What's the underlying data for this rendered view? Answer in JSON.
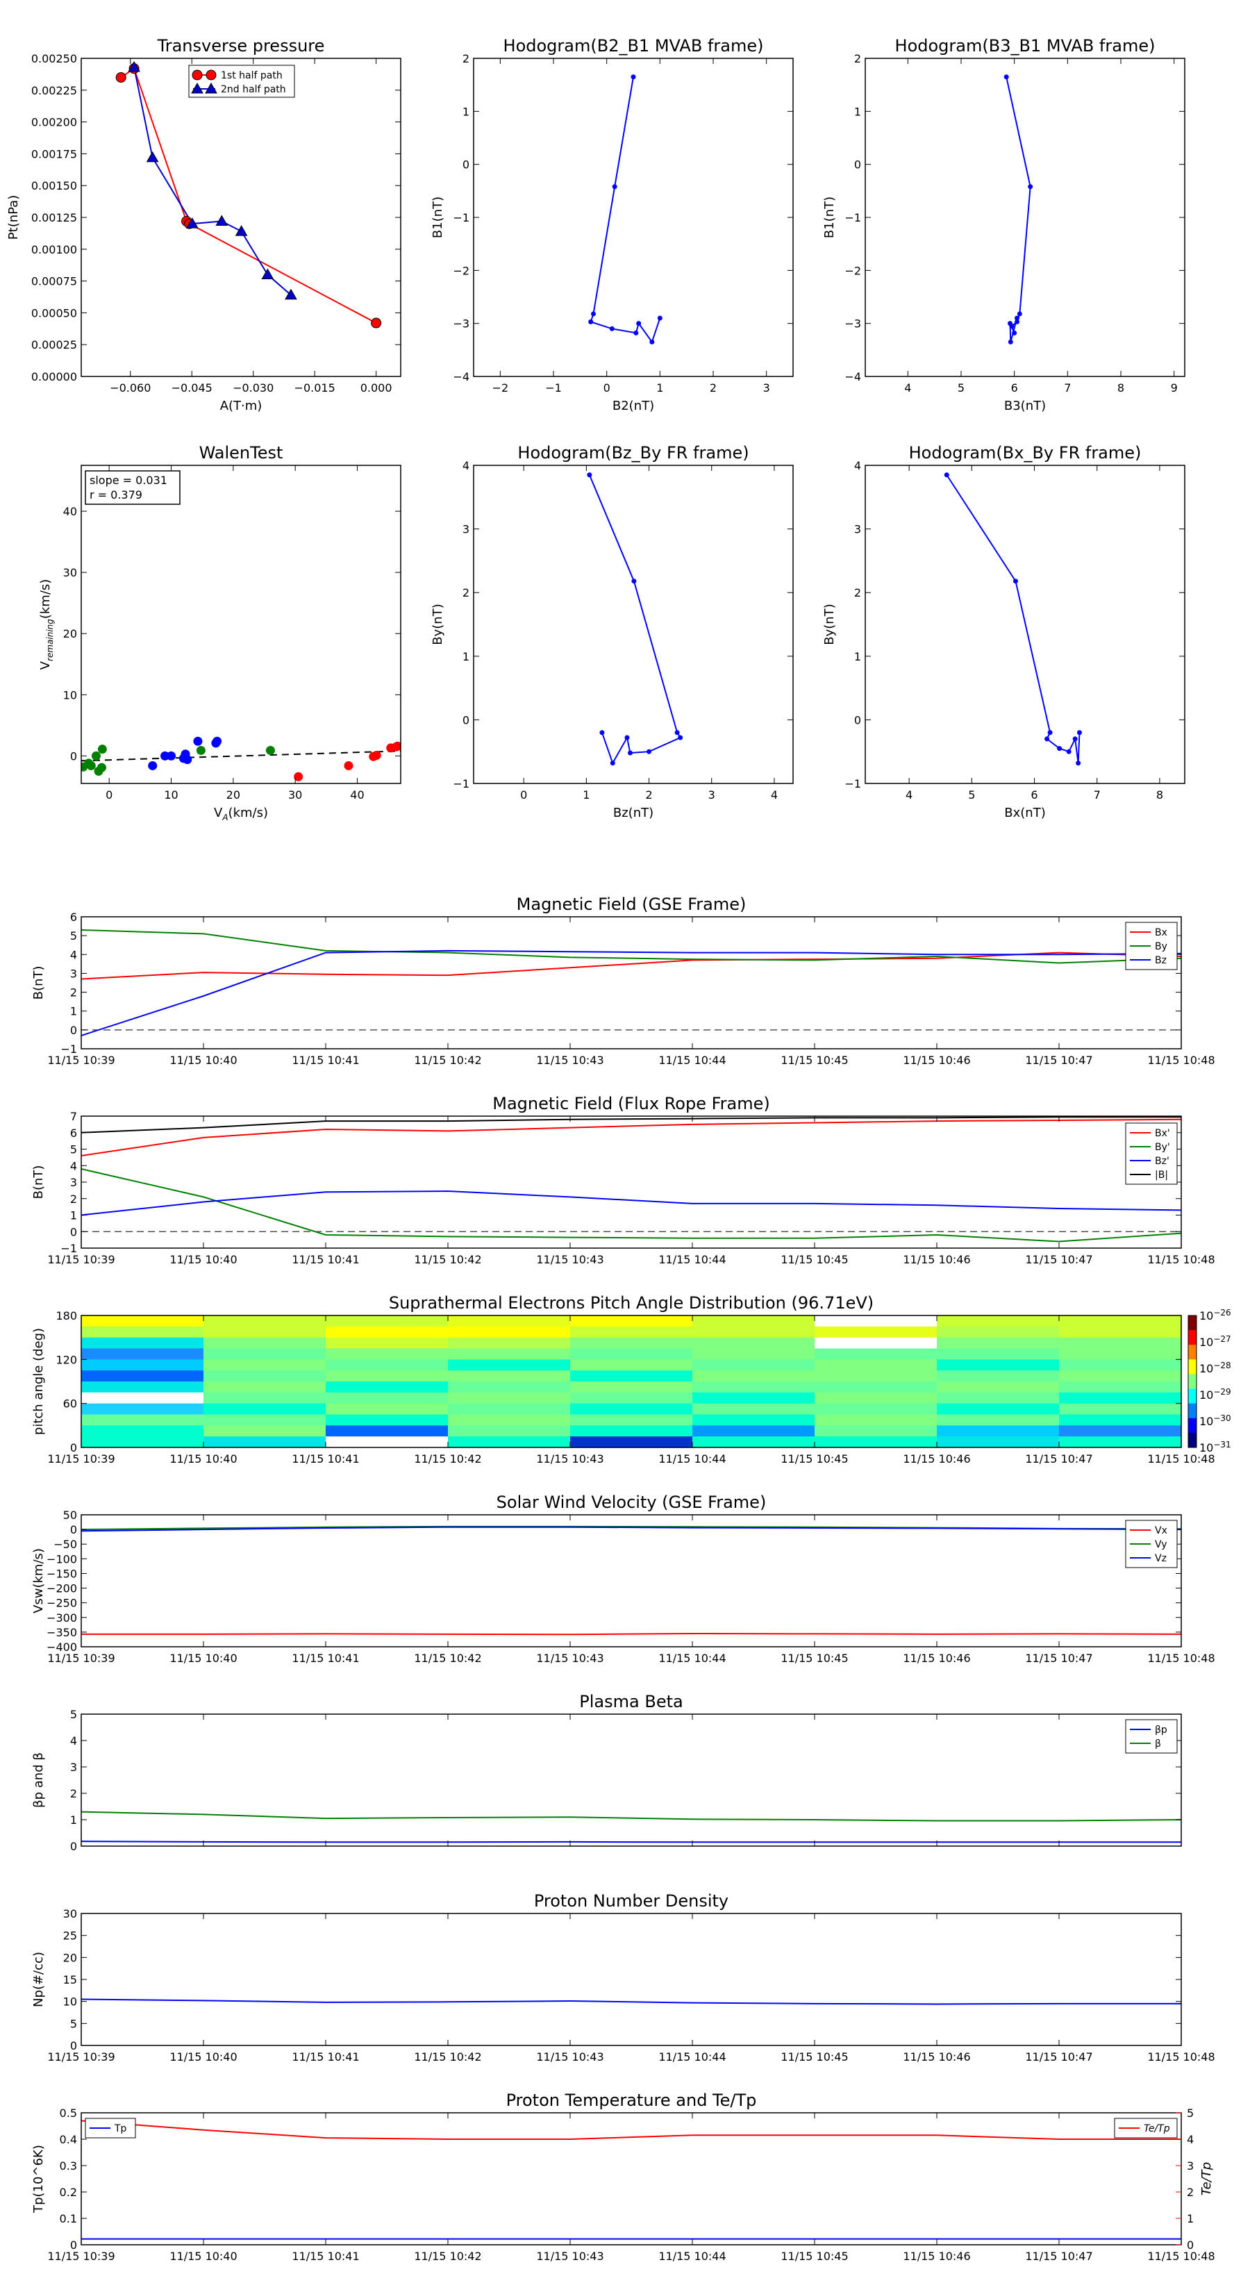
{
  "chart_data": [
    {
      "id": "transverse-pressure",
      "type": "line",
      "title": "Transverse pressure",
      "xlabel": "A(T·m)",
      "ylabel": "Pt(nPa)",
      "xlim": [
        -0.072,
        0.006
      ],
      "ylim": [
        0,
        0.0025
      ],
      "xticks": [
        -0.06,
        -0.045,
        -0.03,
        -0.015,
        0.0
      ],
      "xtick_labels": [
        "−0.060",
        "−0.045",
        "−0.030",
        "−0.015",
        "0.000"
      ],
      "yticks": [
        0,
        0.00025,
        0.0005,
        0.00075,
        0.001,
        0.00125,
        0.0015,
        0.00175,
        0.002,
        0.00225,
        0.0025
      ],
      "ytick_labels": [
        "0.00000",
        "0.00025",
        "0.00050",
        "0.00075",
        "0.00100",
        "0.00125",
        "0.00150",
        "0.00175",
        "0.00200",
        "0.00225",
        "0.00250"
      ],
      "legend": "top-center",
      "series": [
        {
          "name": "1st half path",
          "color": "#ff0000",
          "marker": "circle",
          "x": [
            -0.0623,
            -0.0591,
            -0.0463,
            -0.0456,
            0.0
          ],
          "y": [
            0.00235,
            0.00242,
            0.00122,
            0.0012,
            0.00042
          ]
        },
        {
          "name": "2nd half path",
          "color": "#0000cc",
          "marker": "triangle",
          "x": [
            -0.0591,
            -0.0546,
            -0.0449,
            -0.0377,
            -0.0329,
            -0.0265,
            -0.0208
          ],
          "y": [
            0.00243,
            0.00172,
            0.0012,
            0.00122,
            0.00114,
            0.0008,
            0.00064
          ]
        }
      ]
    },
    {
      "id": "hodogram-b2-b1",
      "type": "line",
      "title": "Hodogram(B2_B1 MVAB frame)",
      "xlabel": "B2(nT)",
      "ylabel": "B1(nT)",
      "xlim": [
        -2.5,
        3.5
      ],
      "ylim": [
        -4,
        2
      ],
      "xticks": [
        -2,
        -1,
        0,
        1,
        2,
        3
      ],
      "yticks": [
        -4,
        -3,
        -2,
        -1,
        0,
        1,
        2
      ],
      "series": [
        {
          "color": "#0000ff",
          "x": [
            0.5,
            0.15,
            -0.25,
            -0.3,
            0.1,
            0.55,
            0.6,
            0.85,
            1.0
          ],
          "y": [
            1.65,
            -0.42,
            -2.82,
            -2.97,
            -3.1,
            -3.18,
            -3.0,
            -3.35,
            -2.9
          ]
        }
      ]
    },
    {
      "id": "hodogram-b3-b1",
      "type": "line",
      "title": "Hodogram(B3_B1 MVAB frame)",
      "xlabel": "B3(nT)",
      "ylabel": "B1(nT)",
      "xlim": [
        3.2,
        9.2
      ],
      "ylim": [
        -4,
        2
      ],
      "xticks": [
        4,
        5,
        6,
        7,
        8,
        9
      ],
      "yticks": [
        -4,
        -3,
        -2,
        -1,
        0,
        1,
        2
      ],
      "series": [
        {
          "color": "#0000ff",
          "x": [
            5.85,
            6.3,
            6.1,
            6.05,
            5.95,
            6.0,
            5.92,
            5.93,
            6.05
          ],
          "y": [
            1.65,
            -0.42,
            -2.82,
            -2.97,
            -3.05,
            -3.18,
            -3.0,
            -3.35,
            -2.9
          ]
        }
      ]
    },
    {
      "id": "walen-test",
      "type": "scatter",
      "title": "WalenTest",
      "xlabel": "V_A(km/s)",
      "ylabel": "V_remaining(km/s)",
      "xlim": [
        -4.5,
        47
      ],
      "ylim": [
        -4.5,
        47.5
      ],
      "xticks": [
        0,
        10,
        20,
        30,
        40
      ],
      "yticks": [
        0,
        10,
        20,
        30,
        40
      ],
      "annotation": [
        "slope = 0.031",
        "r = 0.379"
      ],
      "fit_line": {
        "x": [
          -4.5,
          47
        ],
        "y": [
          -0.8,
          0.8
        ]
      },
      "series": [
        {
          "color": "#008000",
          "x": [
            -4.2,
            -3.3,
            -2.9,
            -2.1,
            -1.7,
            -1.2,
            -1.1,
            14.8,
            26.0
          ],
          "y": [
            -1.8,
            -1.2,
            -1.6,
            0.0,
            -2.5,
            -1.9,
            1.1,
            0.9,
            0.9
          ]
        },
        {
          "color": "#0000ff",
          "x": [
            7.0,
            9.0,
            10.0,
            12.0,
            12.3,
            12.6,
            14.3,
            17.2,
            17.4
          ],
          "y": [
            -1.6,
            0.0,
            0.0,
            -0.4,
            0.3,
            -0.6,
            2.4,
            2.1,
            2.4
          ]
        },
        {
          "color": "#ff0000",
          "x": [
            30.5,
            38.6,
            42.6,
            43.1,
            45.4,
            46.3,
            46.5
          ],
          "y": [
            -3.4,
            -1.6,
            -0.1,
            0.1,
            1.3,
            1.5,
            1.6
          ]
        }
      ]
    },
    {
      "id": "hodogram-bz-by",
      "type": "line",
      "title": "Hodogram(Bz_By FR frame)",
      "xlabel": "Bz(nT)",
      "ylabel": "By(nT)",
      "xlim": [
        -0.8,
        4.3
      ],
      "ylim": [
        -1,
        4
      ],
      "xticks": [
        0,
        1,
        2,
        3,
        4
      ],
      "yticks": [
        -1,
        0,
        1,
        2,
        3,
        4
      ],
      "series": [
        {
          "color": "#0000ff",
          "x": [
            1.05,
            1.76,
            2.45,
            2.5,
            2.0,
            1.7,
            1.65,
            1.42,
            1.25
          ],
          "y": [
            3.85,
            2.18,
            -0.2,
            -0.28,
            -0.5,
            -0.52,
            -0.28,
            -0.68,
            -0.2
          ]
        }
      ]
    },
    {
      "id": "hodogram-bx-by",
      "type": "line",
      "title": "Hodogram(Bx_By FR frame)",
      "xlabel": "Bx(nT)",
      "ylabel": "By(nT)",
      "xlim": [
        3.3,
        8.4
      ],
      "ylim": [
        -1,
        4
      ],
      "xticks": [
        4,
        5,
        6,
        7,
        8
      ],
      "yticks": [
        -1,
        0,
        1,
        2,
        3,
        4
      ],
      "series": [
        {
          "color": "#0000ff",
          "x": [
            4.6,
            5.7,
            6.25,
            6.2,
            6.4,
            6.55,
            6.65,
            6.7,
            6.72
          ],
          "y": [
            3.85,
            2.18,
            -0.2,
            -0.3,
            -0.45,
            -0.5,
            -0.3,
            -0.68,
            -0.2
          ]
        }
      ]
    },
    {
      "id": "magnetic-field-gse",
      "type": "line",
      "title": "Magnetic Field (GSE Frame)",
      "ylabel": "B(nT)",
      "xlim": [
        0,
        9
      ],
      "ylim": [
        -1,
        6
      ],
      "yticks": [
        -1,
        0,
        1,
        2,
        3,
        4,
        5,
        6
      ],
      "xtick_labels": [
        "11/15 10:39",
        "11/15 10:40",
        "11/15 10:41",
        "11/15 10:42",
        "11/15 10:43",
        "11/15 10:44",
        "11/15 10:45",
        "11/15 10:46",
        "11/15 10:47",
        "11/15 10:48"
      ],
      "zero_line": true,
      "legend": "top-right",
      "series": [
        {
          "name": "Bx",
          "color": "#ff0000",
          "values": [
            2.7,
            3.05,
            2.95,
            2.9,
            3.3,
            3.7,
            3.75,
            3.8,
            4.1,
            3.9
          ]
        },
        {
          "name": "By",
          "color": "#008000",
          "values": [
            5.3,
            5.1,
            4.2,
            4.1,
            3.85,
            3.75,
            3.7,
            3.9,
            3.55,
            3.8
          ]
        },
        {
          "name": "Bz",
          "color": "#0000ff",
          "values": [
            -0.3,
            1.8,
            4.1,
            4.2,
            4.15,
            4.1,
            4.1,
            4.0,
            4.0,
            4.05
          ]
        }
      ]
    },
    {
      "id": "magnetic-field-fr",
      "type": "line",
      "title": "Magnetic Field (Flux Rope Frame)",
      "ylabel": "B(nT)",
      "xlim": [
        0,
        9
      ],
      "ylim": [
        -1,
        7
      ],
      "yticks": [
        -1,
        0,
        1,
        2,
        3,
        4,
        5,
        6,
        7
      ],
      "xtick_labels": [
        "11/15 10:39",
        "11/15 10:40",
        "11/15 10:41",
        "11/15 10:42",
        "11/15 10:43",
        "11/15 10:44",
        "11/15 10:45",
        "11/15 10:46",
        "11/15 10:47",
        "11/15 10:48"
      ],
      "zero_line": true,
      "legend": "right",
      "series": [
        {
          "name": "Bx'",
          "color": "#ff0000",
          "values": [
            4.6,
            5.7,
            6.2,
            6.1,
            6.3,
            6.5,
            6.6,
            6.7,
            6.75,
            6.8
          ]
        },
        {
          "name": "By'",
          "color": "#008000",
          "values": [
            3.8,
            2.1,
            -0.2,
            -0.3,
            -0.35,
            -0.4,
            -0.4,
            -0.2,
            -0.6,
            -0.1
          ]
        },
        {
          "name": "Bz'",
          "color": "#0000ff",
          "values": [
            1.0,
            1.8,
            2.4,
            2.45,
            2.1,
            1.7,
            1.7,
            1.6,
            1.4,
            1.3
          ]
        },
        {
          "name": "|B|",
          "color": "#000000",
          "values": [
            6.0,
            6.3,
            6.7,
            6.7,
            6.8,
            6.85,
            6.9,
            6.9,
            6.95,
            6.95
          ]
        }
      ]
    },
    {
      "id": "pitch-angle-distribution",
      "type": "heatmap",
      "title": "Suprathermal Electrons Pitch Angle Distribution (96.71eV)",
      "ylabel": "pitch angle (deg)",
      "xlim": [
        0,
        9
      ],
      "ylim": [
        0,
        180
      ],
      "yticks": [
        0,
        60,
        120,
        180
      ],
      "xtick_labels": [
        "11/15 10:39",
        "11/15 10:40",
        "11/15 10:41",
        "11/15 10:42",
        "11/15 10:43",
        "11/15 10:44",
        "11/15 10:45",
        "11/15 10:46",
        "11/15 10:47",
        "11/15 10:48"
      ],
      "colorbar_labels": [
        "10^-26",
        "10^-27",
        "10^-28",
        "10^-29",
        "10^-30",
        "10^-31"
      ],
      "grid": [
        [
          "#ffff00",
          "#ccff33",
          "#ccff33",
          "#e6ff1a",
          "#ffff00",
          "#ccff33",
          "#ffffff",
          "#ccff33",
          "#ccff33"
        ],
        [
          "#b3ff4d",
          "#ccff33",
          "#ffff00",
          "#ffff00",
          "#ccff33",
          "#ccff33",
          "#e6ff1a",
          "#b3ff4d",
          "#ccff33"
        ],
        [
          "#00e6e6",
          "#80ff80",
          "#ccff33",
          "#b3ff4d",
          "#80ff80",
          "#80ff80",
          "#ffffff",
          "#80ff80",
          "#80ff80"
        ],
        [
          "#1a8cff",
          "#66ff99",
          "#80ff80",
          "#80ff80",
          "#66ff99",
          "#80ff80",
          "#66ff99",
          "#66ff99",
          "#80ff80"
        ],
        [
          "#00ccff",
          "#80ff80",
          "#66ff99",
          "#00ffcc",
          "#80ff80",
          "#66ff99",
          "#80ff80",
          "#00ffcc",
          "#66ff99"
        ],
        [
          "#0066ff",
          "#66ff99",
          "#80ff80",
          "#80ff80",
          "#00ffcc",
          "#80ff80",
          "#80ff80",
          "#66ff99",
          "#80ff80"
        ],
        [
          "#00e6e6",
          "#80ff80",
          "#00ffcc",
          "#66ff99",
          "#80ff80",
          "#66ff99",
          "#66ff99",
          "#80ff80",
          "#66ff99"
        ],
        [
          "#ffffff",
          "#66ff99",
          "#66ff99",
          "#80ff80",
          "#66ff99",
          "#00ffcc",
          "#80ff80",
          "#66ff99",
          "#00ffcc"
        ],
        [
          "#1ad1ff",
          "#00ffcc",
          "#80ff80",
          "#66ff99",
          "#00ffcc",
          "#66ff99",
          "#66ff99",
          "#00ffcc",
          "#66ff99"
        ],
        [
          "#66ff99",
          "#66ff99",
          "#00ffcc",
          "#80ff80",
          "#66ff99",
          "#00ffcc",
          "#80ff80",
          "#66ff99",
          "#00ffcc"
        ],
        [
          "#00ffcc",
          "#80ff80",
          "#0066ff",
          "#66ff99",
          "#00ffcc",
          "#0099ff",
          "#66ff99",
          "#00ccff",
          "#1a8cff"
        ],
        [
          "#00ffcc",
          "#00e6e6",
          "#ffffff",
          "#00ffcc",
          "#0033cc",
          "#00ffcc",
          "#00ffcc",
          "#00e6e6",
          "#00ffcc"
        ]
      ]
    },
    {
      "id": "solar-wind-velocity",
      "type": "line",
      "title": "Solar Wind Velocity (GSE Frame)",
      "ylabel": "Vsw(km/s)",
      "xlim": [
        0,
        9
      ],
      "ylim": [
        -400,
        50
      ],
      "yticks": [
        -400,
        -350,
        -300,
        -250,
        -200,
        -150,
        -100,
        -50,
        0,
        50
      ],
      "xtick_labels": [
        "11/15 10:39",
        "11/15 10:40",
        "11/15 10:41",
        "11/15 10:42",
        "11/15 10:43",
        "11/15 10:44",
        "11/15 10:45",
        "11/15 10:46",
        "11/15 10:47",
        "11/15 10:48"
      ],
      "legend": "top-right",
      "series": [
        {
          "name": "Vx",
          "color": "#ff0000",
          "values": [
            -357,
            -357,
            -356,
            -357,
            -358,
            -355,
            -356,
            -357,
            -356,
            -357
          ]
        },
        {
          "name": "Vy",
          "color": "#008000",
          "values": [
            0,
            4,
            8,
            10,
            10,
            9,
            8,
            6,
            3,
            2
          ]
        },
        {
          "name": "Vz",
          "color": "#0000ff",
          "values": [
            -5,
            0,
            5,
            8,
            8,
            6,
            5,
            4,
            2,
            0
          ]
        }
      ]
    },
    {
      "id": "plasma-beta",
      "type": "line",
      "title": "Plasma Beta",
      "ylabel": "βp and β",
      "xlim": [
        0,
        9
      ],
      "ylim": [
        0,
        5
      ],
      "yticks": [
        0,
        1,
        2,
        3,
        4,
        5
      ],
      "xtick_labels": [
        "11/15 10:39",
        "11/15 10:40",
        "11/15 10:41",
        "11/15 10:42",
        "11/15 10:43",
        "11/15 10:44",
        "11/15 10:45",
        "11/15 10:46",
        "11/15 10:47",
        "11/15 10:48"
      ],
      "legend": "top-right",
      "series": [
        {
          "name": "βp",
          "color": "#0000ff",
          "values": [
            0.18,
            0.16,
            0.15,
            0.15,
            0.16,
            0.15,
            0.15,
            0.15,
            0.15,
            0.15
          ]
        },
        {
          "name": "β",
          "color": "#008000",
          "values": [
            1.3,
            1.2,
            1.05,
            1.08,
            1.1,
            1.02,
            1.0,
            0.96,
            0.96,
            1.0
          ]
        }
      ]
    },
    {
      "id": "proton-number-density",
      "type": "line",
      "title": "Proton Number Density",
      "ylabel": "Np(#/cc)",
      "xlim": [
        0,
        9
      ],
      "ylim": [
        0,
        30
      ],
      "yticks": [
        0,
        5,
        10,
        15,
        20,
        25,
        30
      ],
      "xtick_labels": [
        "11/15 10:39",
        "11/15 10:40",
        "11/15 10:41",
        "11/15 10:42",
        "11/15 10:43",
        "11/15 10:44",
        "11/15 10:45",
        "11/15 10:46",
        "11/15 10:47",
        "11/15 10:48"
      ],
      "series": [
        {
          "color": "#0000ff",
          "values": [
            10.5,
            10.2,
            9.8,
            9.9,
            10.1,
            9.7,
            9.5,
            9.4,
            9.5,
            9.5
          ]
        }
      ]
    },
    {
      "id": "proton-temperature",
      "type": "line",
      "title": "Proton Temperature and Te/Tp",
      "ylabel": "Tp(10^6K)",
      "ylabel_right": "Te/Tp",
      "xlim": [
        0,
        9
      ],
      "ylim": [
        0,
        0.5
      ],
      "ylim_right": [
        0,
        5
      ],
      "yticks": [
        0,
        0.1,
        0.2,
        0.3,
        0.4,
        0.5
      ],
      "yticks_right": [
        0,
        1,
        2,
        3,
        4,
        5
      ],
      "xtick_labels": [
        "11/15 10:39",
        "11/15 10:40",
        "11/15 10:41",
        "11/15 10:42",
        "11/15 10:43",
        "11/15 10:44",
        "11/15 10:45",
        "11/15 10:46",
        "11/15 10:47",
        "11/15 10:48"
      ],
      "series": [
        {
          "name": "Tp",
          "color": "#0000ff",
          "axis": "left",
          "values": [
            0.022,
            0.022,
            0.022,
            0.022,
            0.022,
            0.022,
            0.022,
            0.022,
            0.022,
            0.022
          ]
        },
        {
          "name": "Te/Tp",
          "color": "#ff0000",
          "axis": "right",
          "values": [
            4.7,
            4.35,
            4.05,
            4.0,
            4.0,
            4.15,
            4.15,
            4.15,
            4.0,
            4.0
          ]
        }
      ]
    }
  ]
}
